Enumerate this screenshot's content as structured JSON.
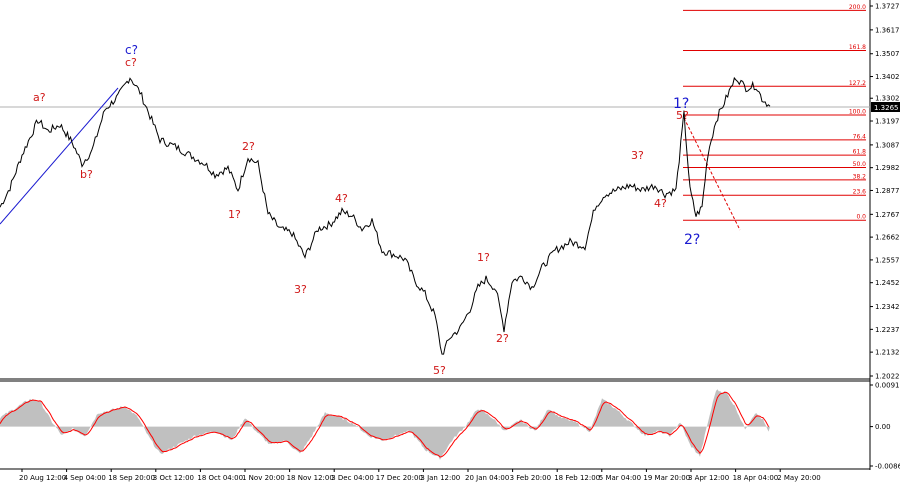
{
  "chart_data": {
    "type": "line",
    "instrument_series": [
      {
        "name": "",
        "x": [
          "20 Aug 12:00",
          "4 Sep 04:00",
          "18 Sep 20:00",
          "3 Oct 12:00",
          "18 Oct 04:00",
          "1 Nov 20:00",
          "18 Nov 12:00",
          "3 Dec 04:00",
          "17 Dec 20:00",
          "3 Jan 12:00",
          "20 Jan 04:00",
          "3 Feb 20:00",
          "18 Feb 12:00",
          "5 Mar 04:00",
          "19 Mar 20:00",
          "3 Apr 12:00",
          "18 Apr 04:00",
          "2 May 20:00"
        ],
        "values": [
          1.323,
          1.306,
          1.339,
          1.312,
          1.296,
          1.287,
          1.262,
          1.272,
          1.256,
          1.224,
          1.243,
          1.246,
          1.261,
          1.288,
          1.295,
          1.279,
          1.338,
          1.3265
        ]
      }
    ],
    "ylim": [
      1.2022,
      1.3727
    ],
    "y_ticks": [
      "1.3727",
      "1.3617",
      "1.3507",
      "1.3402",
      "1.3302",
      "1.3197",
      "1.3087",
      "1.2982",
      "1.2877",
      "1.2767",
      "1.2662",
      "1.2557",
      "1.2452",
      "1.2342",
      "1.2237",
      "1.2132",
      "1.2022"
    ],
    "current_price": "1.3265",
    "x_ticks": [
      "20 Aug 12:00",
      "4 Sep 04:00",
      "18 Sep 20:00",
      "3 Oct 12:00",
      "18 Oct 04:00",
      "1 Nov 20:00",
      "18 Nov 12:00",
      "3 Dec 04:00",
      "17 Dec 20:00",
      "3 Jan 12:00",
      "20 Jan 04:00",
      "3 Feb 20:00",
      "18 Feb 12:00",
      "5 Mar 04:00",
      "19 Mar 20:00",
      "3 Apr 12:00",
      "18 Apr 04:00",
      "2 May 20:00"
    ],
    "fibonacci_levels": [
      {
        "label": "200.0",
        "value": 1.3707
      },
      {
        "label": "161.8",
        "value": 1.3522
      },
      {
        "label": "127.2",
        "value": 1.3357
      },
      {
        "label": "100.0",
        "value": 1.3225
      },
      {
        "label": "76.4",
        "value": 1.311
      },
      {
        "label": "61.8",
        "value": 1.304
      },
      {
        "label": "50.0",
        "value": 1.2983
      },
      {
        "label": "38.2",
        "value": 1.2926
      },
      {
        "label": "23.6",
        "value": 1.2855
      },
      {
        "label": "0.0",
        "value": 1.274
      }
    ],
    "wave_labels_red": [
      "a?",
      "b?",
      "c?",
      "1?",
      "2?",
      "3?",
      "4?",
      "5?",
      "1?",
      "2?",
      "3?",
      "4?",
      "5?"
    ],
    "wave_labels_blue": [
      "c?",
      "1?",
      "2?"
    ],
    "oscillator": {
      "y_ticks": [
        "0.0091",
        "0.00",
        "-0.00862"
      ],
      "ylim": [
        -0.00862,
        0.0091
      ]
    },
    "colors": {
      "price_line": "#000000",
      "fib_lines": "#e00000",
      "trend_line": "#1a1ad0",
      "oscillator_fill": "#c0c0c0",
      "signal_line": "#ff0000",
      "wave_red": "#d01818",
      "wave_blue": "#1a1ad0"
    }
  }
}
